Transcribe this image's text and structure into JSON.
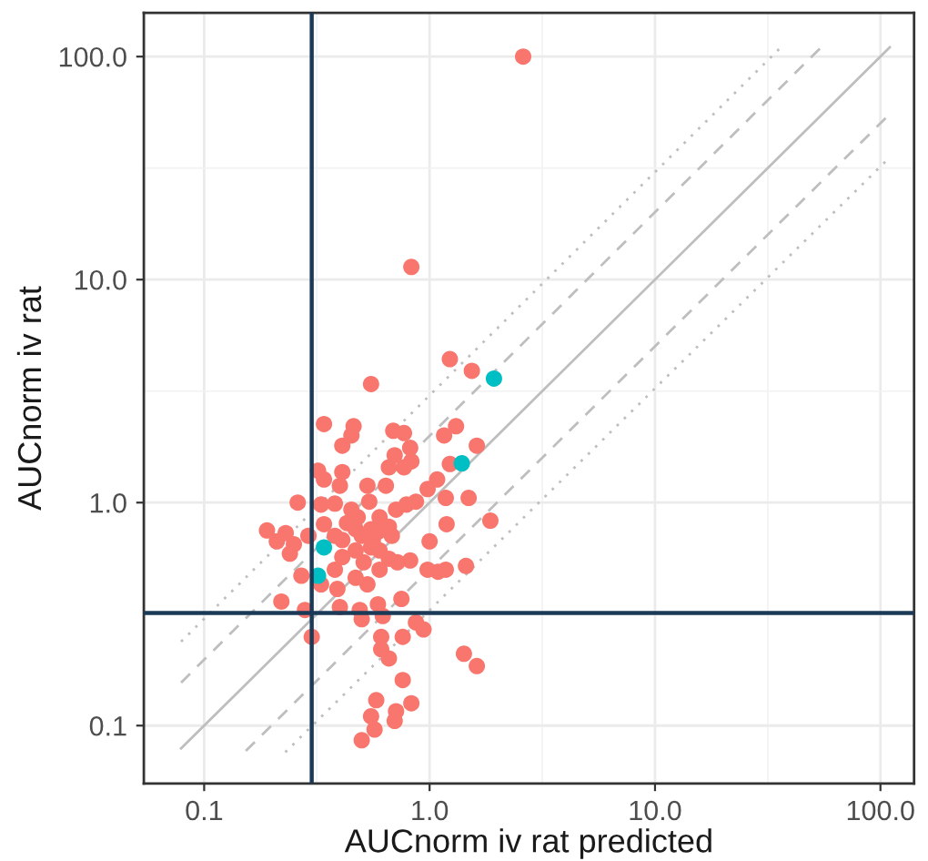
{
  "chart_data": {
    "type": "scatter",
    "xlabel": "AUCnorm iv rat predicted",
    "ylabel": "AUCnorm iv rat",
    "log": "xy",
    "grid": true,
    "xlim": [
      0.054,
      141
    ],
    "ylim": [
      0.055,
      157
    ],
    "xticks": [
      0.1,
      {
        "value": 1,
        "label": "1.0"
      },
      {
        "value": 10,
        "label": "10.0"
      },
      {
        "value": 100,
        "label": "100.0"
      }
    ],
    "yticks": [
      0.1,
      {
        "value": 1,
        "label": "1.0"
      },
      {
        "value": 10,
        "label": "10.0"
      },
      {
        "value": 100,
        "label": "100.0"
      }
    ],
    "series": [
      {
        "type": "line",
        "color": "#bebebe",
        "line_style": "dotted",
        "x": [
          0.079,
          35.5
        ],
        "values": [
          0.238,
          108
        ]
      },
      {
        "type": "line",
        "color": "#bebebe",
        "line_style": "dashed",
        "x": [
          0.079,
          55
        ],
        "values": [
          0.156,
          111
        ]
      },
      {
        "type": "line",
        "color": "#bebebe",
        "line_style": "solid",
        "x": [
          0.079,
          110
        ],
        "values": [
          0.079,
          110
        ]
      },
      {
        "type": "line",
        "color": "#bebebe",
        "line_style": "dashed",
        "x": [
          0.153,
          109.5
        ],
        "values": [
          0.077,
          55
        ]
      },
      {
        "type": "line",
        "color": "#bebebe",
        "line_style": "dotted",
        "x": [
          0.229,
          109
        ],
        "values": [
          0.076,
          35
        ]
      },
      {
        "color": "#f8766d",
        "marker": "circle",
        "x": [
          2.6,
          0.83,
          0.55,
          1.23,
          1.54,
          0.34,
          0.46,
          0.45,
          0.41,
          0.69,
          0.77,
          0.82,
          0.83,
          1.16,
          1.31,
          1.62,
          1.23,
          1.08,
          0.98,
          1.49,
          1.18,
          1.19,
          1.86,
          1.0,
          1.45,
          1.18,
          1.09,
          0.98,
          0.82,
          0.72,
          0.66,
          0.6,
          0.53,
          0.47,
          0.39,
          0.38,
          0.33,
          0.22,
          0.28,
          0.4,
          0.49,
          0.59,
          0.5,
          0.62,
          0.75,
          0.76,
          0.87,
          0.94,
          0.3,
          0.61,
          0.61,
          0.66,
          0.76,
          1.42,
          1.62,
          0.83,
          0.71,
          0.58,
          0.55,
          0.57,
          0.5,
          0.7,
          0.19,
          0.21,
          0.23,
          0.25,
          0.24,
          0.26,
          0.29,
          0.27,
          0.32,
          0.34,
          0.41,
          0.4,
          0.33,
          0.38,
          0.34,
          0.38,
          0.43,
          0.47,
          0.53,
          0.54,
          0.64,
          0.66,
          0.7,
          0.77,
          0.6,
          0.5,
          0.55,
          0.56,
          0.47,
          0.66,
          0.68,
          0.6,
          0.51,
          0.41,
          0.79,
          0.87,
          0.71,
          0.48,
          0.45,
          0.41,
          0.59,
          0.55
        ],
        "values": [
          100,
          11.4,
          3.4,
          4.4,
          3.9,
          2.25,
          2.2,
          2.0,
          1.8,
          2.1,
          2.05,
          1.76,
          1.53,
          2.0,
          2.2,
          1.8,
          1.49,
          1.27,
          1.15,
          1.05,
          1.05,
          0.8,
          0.83,
          0.67,
          0.52,
          0.5,
          0.49,
          0.5,
          0.55,
          0.54,
          0.56,
          0.5,
          0.43,
          0.46,
          0.41,
          0.5,
          0.43,
          0.36,
          0.33,
          0.34,
          0.33,
          0.35,
          0.3,
          0.31,
          0.37,
          0.25,
          0.29,
          0.27,
          0.25,
          0.25,
          0.22,
          0.2,
          0.16,
          0.21,
          0.185,
          0.126,
          0.116,
          0.13,
          0.11,
          0.096,
          0.086,
          0.105,
          0.75,
          0.67,
          0.73,
          0.65,
          0.59,
          1.0,
          0.71,
          0.47,
          1.39,
          1.27,
          1.37,
          1.19,
          0.98,
          0.99,
          0.8,
          0.71,
          0.81,
          0.76,
          1.19,
          1.01,
          1.19,
          1.44,
          1.63,
          1.44,
          0.86,
          0.71,
          0.76,
          0.67,
          0.61,
          0.78,
          0.71,
          0.61,
          0.54,
          0.57,
          0.98,
          1.01,
          0.93,
          0.86,
          0.93,
          0.68,
          0.74,
          0.63
        ]
      },
      {
        "color": "#00bfc4",
        "marker": "circle",
        "x": [
          1.93,
          1.39,
          0.34,
          0.32
        ],
        "values": [
          3.6,
          1.5,
          0.63,
          0.47
        ]
      }
    ],
    "ref_lines": [
      {
        "axis": "x",
        "value": 0.3,
        "color": "#1b3a57"
      },
      {
        "axis": "y",
        "value": 0.32,
        "color": "#1b3a57"
      }
    ]
  }
}
